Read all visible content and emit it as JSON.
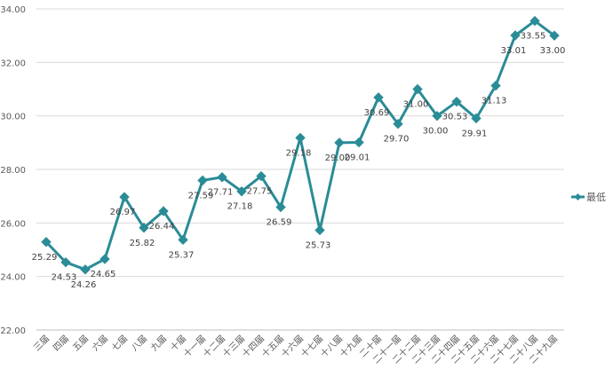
{
  "chart_data": {
    "type": "line",
    "categories": [
      "三届",
      "四届",
      "五届",
      "六届",
      "七届",
      "八届",
      "九届",
      "十届",
      "十一届",
      "十二届",
      "十三届",
      "十四届",
      "十五届",
      "十六届",
      "十七届",
      "十八届",
      "十九届",
      "二十届",
      "二十一届",
      "二十二届",
      "二十三届",
      "二十四届",
      "二十五届",
      "二十六届",
      "二十七届",
      "二十八届",
      "二十九届"
    ],
    "series": [
      {
        "name": "最低",
        "values": [
          25.29,
          24.53,
          24.26,
          24.65,
          26.97,
          25.82,
          26.44,
          25.37,
          27.59,
          27.71,
          27.18,
          27.75,
          26.59,
          29.18,
          25.73,
          29.0,
          29.01,
          30.69,
          29.7,
          31.0,
          30.0,
          30.53,
          29.91,
          31.13,
          33.01,
          33.55,
          33.0
        ],
        "value_labels": [
          "25.29",
          "24.53",
          "24.26",
          "24.65",
          "26.97",
          "25.82",
          "26.44",
          "25.37",
          "27.59",
          "27.71",
          "27.18",
          "27.75",
          "26.59",
          "29.18",
          "25.73",
          "29.00",
          "29.01",
          "30.69",
          "29.70",
          "31.00",
          "30.00",
          "30.53",
          "29.91",
          "31.13",
          "33.01",
          "33.55",
          "33.00"
        ],
        "color": "#2A8C97"
      }
    ],
    "ylim": [
      22,
      34
    ],
    "yticks": [
      "22.00",
      "24.00",
      "26.00",
      "28.00",
      "30.00",
      "32.00",
      "34.00"
    ],
    "grid": true,
    "legend": "right"
  }
}
